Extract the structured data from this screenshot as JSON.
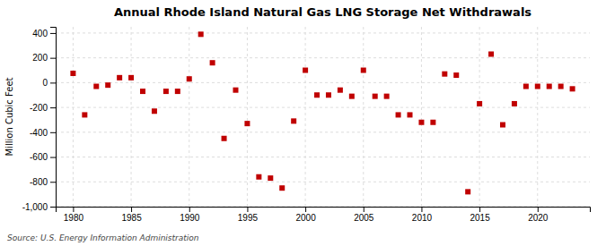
{
  "chart_data": {
    "type": "scatter",
    "title": "Annual Rhode Island Natural Gas LNG Storage Net Withdrawals",
    "y_label": "Million Cubic Feet",
    "annotation": "Source: U.S. Energy Information Administration",
    "x": [
      1980,
      1981,
      1982,
      1983,
      1984,
      1985,
      1986,
      1987,
      1988,
      1989,
      1990,
      1991,
      1992,
      1993,
      1994,
      1995,
      1996,
      1997,
      1998,
      1999,
      2000,
      2001,
      2002,
      2003,
      2004,
      2005,
      2006,
      2007,
      2008,
      2009,
      2010,
      2011,
      2012,
      2013,
      2014,
      2015,
      2016,
      2017,
      2018,
      2019,
      2020,
      2021,
      2022,
      2023
    ],
    "values": [
      75,
      -260,
      -30,
      -20,
      40,
      40,
      -70,
      -230,
      -70,
      -70,
      30,
      390,
      160,
      -450,
      -60,
      -330,
      -760,
      -770,
      -850,
      -310,
      100,
      -100,
      -100,
      -60,
      -110,
      100,
      -110,
      -110,
      -260,
      -260,
      -320,
      -320,
      70,
      60,
      -880,
      -170,
      230,
      -340,
      -170,
      -30,
      -30,
      -30,
      -30,
      -50
    ],
    "color": "#c00000",
    "marker": "square",
    "grid": true,
    "xlim": [
      1978.5,
      2024.5
    ],
    "xticks": [
      1980,
      1985,
      1990,
      1995,
      2000,
      2005,
      2010,
      2015,
      2020
    ],
    "ylim": [
      -1000,
      450
    ],
    "yticks": [
      {
        "value": -1000,
        "label": "-1,000"
      },
      -800,
      -600,
      -400,
      -200,
      0,
      200,
      400
    ]
  }
}
